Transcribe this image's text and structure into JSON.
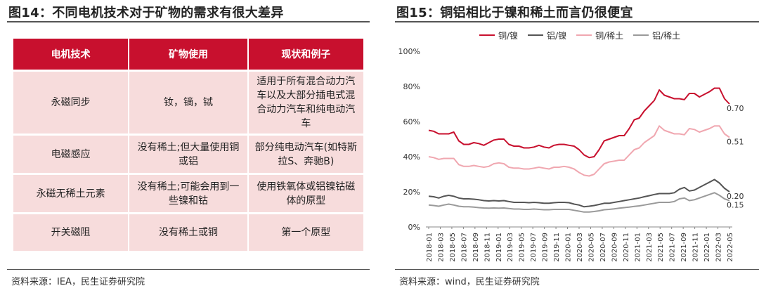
{
  "left": {
    "title": "图14：不同电机技术对于矿物的需求有很大差异",
    "source": "资料来源：IEA，民生证券研究院",
    "table": {
      "headers": [
        "电机技术",
        "矿物使用",
        "现状和例子"
      ],
      "rows": [
        [
          "永磁同步",
          "钕，镝，铽",
          "适用于所有混合动力汽车以及大部分插电式混合动力汽车和纯电动汽车"
        ],
        [
          "电磁感应",
          "没有稀土;但大量使用铜或铝",
          "部分纯电动汽车(如特斯拉S、奔驰B)"
        ],
        [
          "永磁无稀土元素",
          "没有稀土;可能会用到一些镍和钴",
          "使用铁氧体或铝镍钴磁体的原型"
        ],
        [
          "开关磁阻",
          "没有稀土或铜",
          "第一个原型"
        ]
      ]
    }
  },
  "right": {
    "title": "图15：铜铝相比于镍和稀土而言仍很便宜",
    "source": "资料来源：wind，民生证券研究院",
    "chart_data": {
      "type": "line",
      "yticks": [
        "0%",
        "20%",
        "40%",
        "60%",
        "80%",
        "100%"
      ],
      "ylim": [
        0,
        1
      ],
      "xticks": [
        "2018-01",
        "2018-03",
        "2018-05",
        "2018-07",
        "2018-09",
        "2018-11",
        "2019-01",
        "2019-03",
        "2019-05",
        "2019-07",
        "2019-09",
        "2019-11",
        "2020-01",
        "2020-03",
        "2020-05",
        "2020-07",
        "2020-09",
        "2020-11",
        "2021-01",
        "2021-03",
        "2021-05",
        "2021-07",
        "2021-09",
        "2021-11",
        "2022-01",
        "2022-03",
        "2022-05"
      ],
      "legend": "top",
      "grid": false,
      "series": [
        {
          "name": "铜/镍",
          "color": "#c8102e",
          "end_label": "0.70",
          "values": [
            0.55,
            0.545,
            0.53,
            0.53,
            0.53,
            0.54,
            0.49,
            0.47,
            0.47,
            0.48,
            0.475,
            0.465,
            0.48,
            0.495,
            0.5,
            0.5,
            0.47,
            0.46,
            0.46,
            0.45,
            0.45,
            0.455,
            0.465,
            0.455,
            0.45,
            0.465,
            0.47,
            0.47,
            0.465,
            0.46,
            0.44,
            0.41,
            0.395,
            0.4,
            0.44,
            0.49,
            0.5,
            0.51,
            0.52,
            0.52,
            0.56,
            0.61,
            0.62,
            0.66,
            0.69,
            0.72,
            0.78,
            0.75,
            0.74,
            0.73,
            0.73,
            0.725,
            0.76,
            0.76,
            0.74,
            0.755,
            0.77,
            0.79,
            0.79,
            0.73,
            0.7
          ]
        },
        {
          "name": "铝/镍",
          "color": "#555555",
          "end_label": "0.20",
          "values": [
            0.175,
            0.172,
            0.165,
            0.175,
            0.18,
            0.175,
            0.165,
            0.16,
            0.16,
            0.158,
            0.155,
            0.15,
            0.148,
            0.15,
            0.148,
            0.15,
            0.145,
            0.14,
            0.14,
            0.14,
            0.138,
            0.14,
            0.138,
            0.135,
            0.135,
            0.138,
            0.14,
            0.14,
            0.138,
            0.13,
            0.125,
            0.115,
            0.118,
            0.122,
            0.128,
            0.135,
            0.135,
            0.14,
            0.145,
            0.15,
            0.155,
            0.16,
            0.165,
            0.172,
            0.178,
            0.185,
            0.19,
            0.19,
            0.19,
            0.195,
            0.215,
            0.225,
            0.205,
            0.21,
            0.225,
            0.24,
            0.255,
            0.27,
            0.25,
            0.22,
            0.2
          ]
        },
        {
          "name": "铜/稀土",
          "color": "#f0a7b0",
          "end_label": "0.51",
          "values": [
            0.4,
            0.395,
            0.385,
            0.39,
            0.39,
            0.39,
            0.355,
            0.345,
            0.345,
            0.35,
            0.345,
            0.34,
            0.345,
            0.36,
            0.365,
            0.36,
            0.34,
            0.335,
            0.335,
            0.33,
            0.33,
            0.335,
            0.34,
            0.335,
            0.33,
            0.34,
            0.34,
            0.345,
            0.34,
            0.33,
            0.31,
            0.295,
            0.29,
            0.3,
            0.33,
            0.36,
            0.37,
            0.375,
            0.38,
            0.38,
            0.41,
            0.44,
            0.45,
            0.48,
            0.5,
            0.52,
            0.575,
            0.55,
            0.54,
            0.53,
            0.53,
            0.525,
            0.56,
            0.555,
            0.54,
            0.55,
            0.56,
            0.575,
            0.575,
            0.53,
            0.51
          ]
        },
        {
          "name": "铝/稀土",
          "color": "#9a9a9a",
          "end_label": "0.15",
          "values": [
            0.125,
            0.122,
            0.118,
            0.125,
            0.13,
            0.125,
            0.118,
            0.115,
            0.115,
            0.113,
            0.11,
            0.108,
            0.107,
            0.108,
            0.107,
            0.108,
            0.105,
            0.102,
            0.102,
            0.1,
            0.1,
            0.102,
            0.1,
            0.098,
            0.098,
            0.1,
            0.1,
            0.1,
            0.1,
            0.095,
            0.09,
            0.085,
            0.085,
            0.088,
            0.092,
            0.098,
            0.1,
            0.103,
            0.107,
            0.11,
            0.113,
            0.117,
            0.12,
            0.125,
            0.13,
            0.135,
            0.14,
            0.14,
            0.14,
            0.145,
            0.16,
            0.165,
            0.15,
            0.155,
            0.165,
            0.175,
            0.185,
            0.195,
            0.18,
            0.16,
            0.15
          ]
        }
      ]
    }
  }
}
